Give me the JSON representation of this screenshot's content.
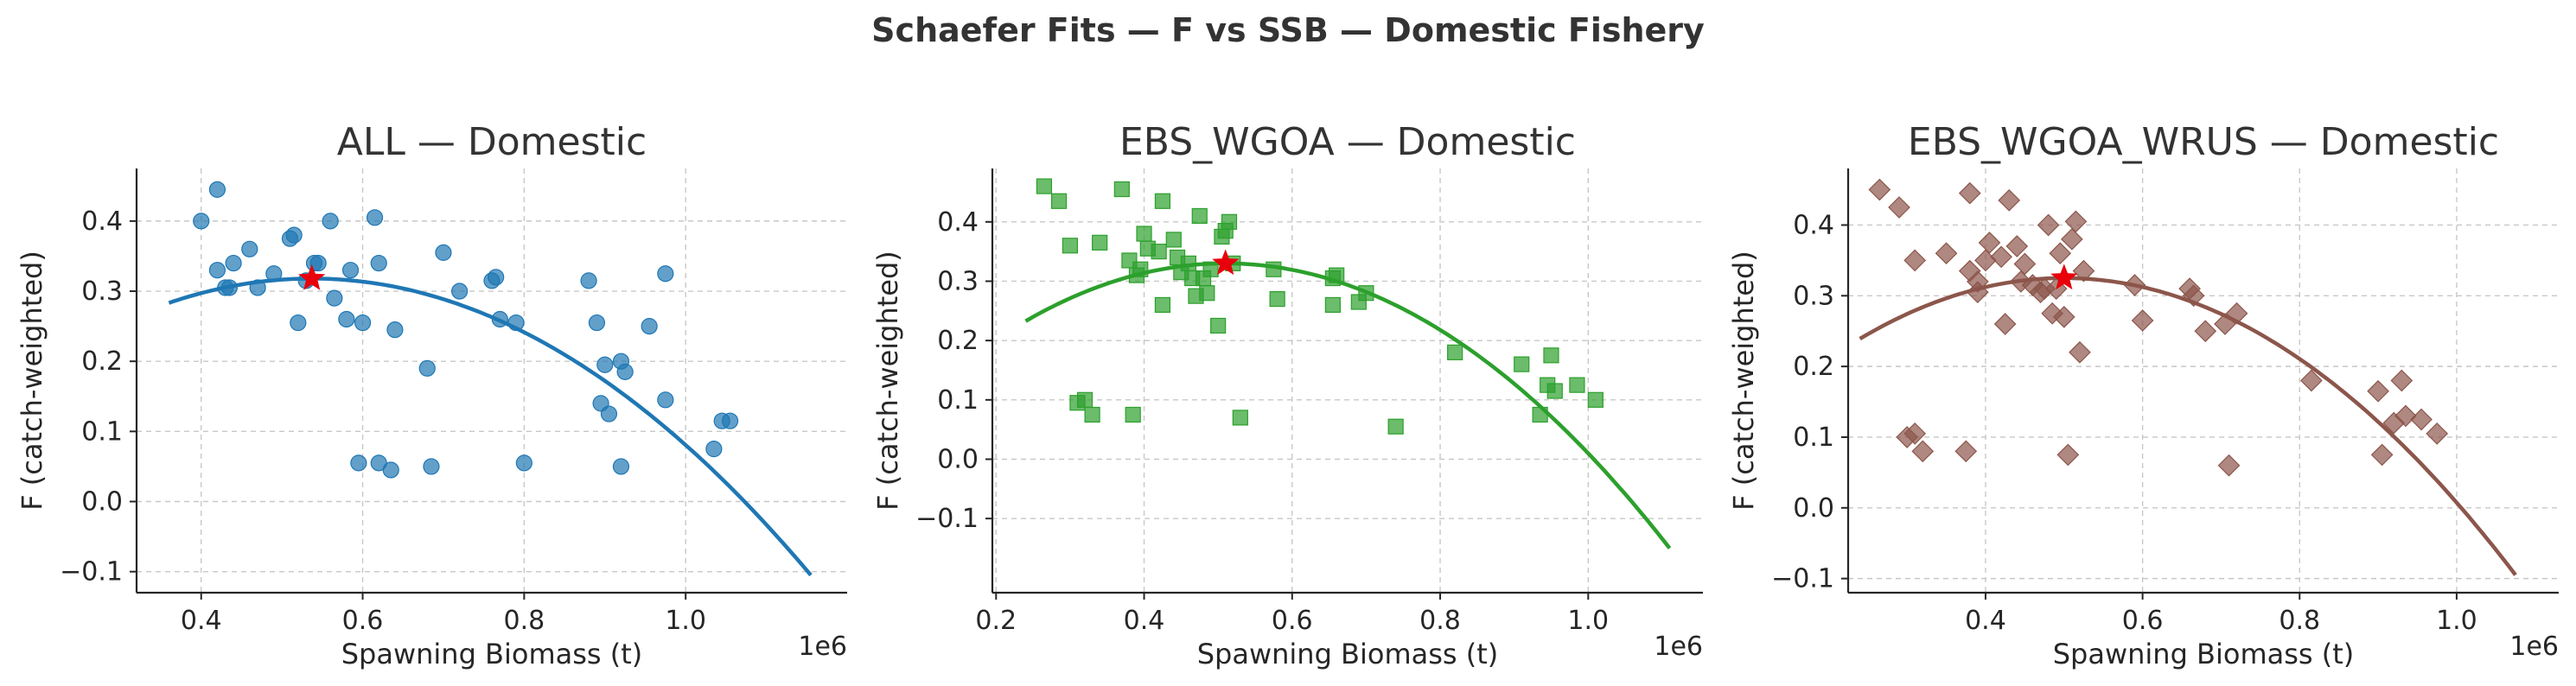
{
  "figure": {
    "suptitle": "Schaefer Fits — F vs SSB — Domestic Fishery"
  },
  "colors": {
    "marker_star": "#e8000b",
    "text": "#333333"
  },
  "chart_data": [
    {
      "type": "scatter",
      "title": "ALL — Domestic",
      "xlabel": "Spawning Biomass (t)",
      "ylabel": "F (catch-weighted)",
      "x_offset_label": "1e6",
      "x_scale_factor": 1000000,
      "xlim": [
        0.32,
        1.2
      ],
      "ylim": [
        -0.13,
        0.475
      ],
      "xticks": [
        0.4,
        0.6,
        0.8,
        1.0
      ],
      "xtick_labels": [
        "0.4",
        "0.6",
        "0.8",
        "1.0"
      ],
      "yticks": [
        -0.1,
        0.0,
        0.1,
        0.2,
        0.3,
        0.4
      ],
      "ytick_labels": [
        "−0.1",
        "0.0",
        "0.1",
        "0.2",
        "0.3",
        "0.4"
      ],
      "grid": true,
      "marker": "circle",
      "color": "#1f77b4",
      "points": [
        [
          0.4,
          0.4
        ],
        [
          0.42,
          0.445
        ],
        [
          0.42,
          0.33
        ],
        [
          0.43,
          0.305
        ],
        [
          0.435,
          0.305
        ],
        [
          0.44,
          0.34
        ],
        [
          0.46,
          0.36
        ],
        [
          0.47,
          0.305
        ],
        [
          0.49,
          0.325
        ],
        [
          0.51,
          0.375
        ],
        [
          0.515,
          0.38
        ],
        [
          0.52,
          0.255
        ],
        [
          0.53,
          0.315
        ],
        [
          0.54,
          0.34
        ],
        [
          0.545,
          0.34
        ],
        [
          0.56,
          0.4
        ],
        [
          0.565,
          0.29
        ],
        [
          0.58,
          0.26
        ],
        [
          0.585,
          0.33
        ],
        [
          0.595,
          0.055
        ],
        [
          0.6,
          0.255
        ],
        [
          0.615,
          0.405
        ],
        [
          0.62,
          0.34
        ],
        [
          0.62,
          0.055
        ],
        [
          0.635,
          0.045
        ],
        [
          0.64,
          0.245
        ],
        [
          0.68,
          0.19
        ],
        [
          0.685,
          0.05
        ],
        [
          0.7,
          0.355
        ],
        [
          0.72,
          0.3
        ],
        [
          0.76,
          0.315
        ],
        [
          0.765,
          0.32
        ],
        [
          0.77,
          0.26
        ],
        [
          0.79,
          0.255
        ],
        [
          0.8,
          0.055
        ],
        [
          0.88,
          0.315
        ],
        [
          0.89,
          0.255
        ],
        [
          0.895,
          0.14
        ],
        [
          0.9,
          0.195
        ],
        [
          0.905,
          0.125
        ],
        [
          0.92,
          0.05
        ],
        [
          0.92,
          0.2
        ],
        [
          0.925,
          0.185
        ],
        [
          0.955,
          0.25
        ],
        [
          0.975,
          0.145
        ],
        [
          0.975,
          0.325
        ],
        [
          1.035,
          0.075
        ],
        [
          1.045,
          0.115
        ],
        [
          1.055,
          0.115
        ]
      ],
      "fit_curve": {
        "x_range": [
          0.36,
          1.155
        ],
        "peak_x": 0.537,
        "peak_y": 0.318,
        "end_y": -0.105
      },
      "msy_point": [
        0.537,
        0.318
      ]
    },
    {
      "type": "scatter",
      "title": "EBS_WGOA — Domestic",
      "xlabel": "Spawning Biomass (t)",
      "ylabel": "F (catch-weighted)",
      "x_offset_label": "1e6",
      "x_scale_factor": 1000000,
      "xlim": [
        0.195,
        1.155
      ],
      "ylim": [
        -0.225,
        0.49
      ],
      "xticks": [
        0.2,
        0.4,
        0.6,
        0.8,
        1.0
      ],
      "xtick_labels": [
        "0.2",
        "0.4",
        "0.6",
        "0.8",
        "1.0"
      ],
      "yticks": [
        -0.1,
        0.0,
        0.1,
        0.2,
        0.3,
        0.4
      ],
      "ytick_labels": [
        "−0.1",
        "0.0",
        "0.1",
        "0.2",
        "0.3",
        "0.4"
      ],
      "grid": true,
      "marker": "square",
      "color": "#2ca02c",
      "points": [
        [
          0.265,
          0.46
        ],
        [
          0.285,
          0.435
        ],
        [
          0.3,
          0.36
        ],
        [
          0.31,
          0.095
        ],
        [
          0.32,
          0.1
        ],
        [
          0.33,
          0.075
        ],
        [
          0.34,
          0.365
        ],
        [
          0.37,
          0.455
        ],
        [
          0.38,
          0.335
        ],
        [
          0.385,
          0.075
        ],
        [
          0.39,
          0.31
        ],
        [
          0.395,
          0.32
        ],
        [
          0.4,
          0.38
        ],
        [
          0.405,
          0.355
        ],
        [
          0.42,
          0.35
        ],
        [
          0.425,
          0.26
        ],
        [
          0.425,
          0.435
        ],
        [
          0.44,
          0.37
        ],
        [
          0.445,
          0.34
        ],
        [
          0.45,
          0.315
        ],
        [
          0.46,
          0.33
        ],
        [
          0.465,
          0.305
        ],
        [
          0.47,
          0.275
        ],
        [
          0.475,
          0.41
        ],
        [
          0.48,
          0.305
        ],
        [
          0.485,
          0.28
        ],
        [
          0.49,
          0.32
        ],
        [
          0.5,
          0.225
        ],
        [
          0.505,
          0.375
        ],
        [
          0.51,
          0.385
        ],
        [
          0.515,
          0.4
        ],
        [
          0.52,
          0.33
        ],
        [
          0.53,
          0.07
        ],
        [
          0.575,
          0.32
        ],
        [
          0.58,
          0.27
        ],
        [
          0.655,
          0.26
        ],
        [
          0.655,
          0.305
        ],
        [
          0.66,
          0.31
        ],
        [
          0.69,
          0.265
        ],
        [
          0.7,
          0.28
        ],
        [
          0.74,
          0.055
        ],
        [
          0.82,
          0.18
        ],
        [
          0.91,
          0.16
        ],
        [
          0.935,
          0.075
        ],
        [
          0.945,
          0.125
        ],
        [
          0.95,
          0.175
        ],
        [
          0.955,
          0.115
        ],
        [
          0.985,
          0.125
        ],
        [
          1.01,
          0.1
        ]
      ],
      "fit_curve": {
        "x_range": [
          0.24,
          1.11
        ],
        "peak_x": 0.51,
        "peak_y": 0.33,
        "end_y": -0.15
      },
      "msy_point": [
        0.51,
        0.33
      ]
    },
    {
      "type": "scatter",
      "title": "EBS_WGOA_WRUS — Domestic",
      "xlabel": "Spawning Biomass (t)",
      "ylabel": "F (catch-weighted)",
      "x_offset_label": "1e6",
      "x_scale_factor": 1000000,
      "xlim": [
        0.225,
        1.13
      ],
      "ylim": [
        -0.12,
        0.48
      ],
      "xticks": [
        0.4,
        0.6,
        0.8,
        1.0
      ],
      "xtick_labels": [
        "0.4",
        "0.6",
        "0.8",
        "1.0"
      ],
      "yticks": [
        -0.1,
        0.0,
        0.1,
        0.2,
        0.3,
        0.4
      ],
      "ytick_labels": [
        "−0.1",
        "0.0",
        "0.1",
        "0.2",
        "0.3",
        "0.4"
      ],
      "grid": true,
      "marker": "diamond",
      "color": "#8c564b",
      "points": [
        [
          0.265,
          0.45
        ],
        [
          0.29,
          0.425
        ],
        [
          0.3,
          0.1
        ],
        [
          0.31,
          0.35
        ],
        [
          0.31,
          0.105
        ],
        [
          0.32,
          0.08
        ],
        [
          0.35,
          0.36
        ],
        [
          0.375,
          0.08
        ],
        [
          0.38,
          0.335
        ],
        [
          0.38,
          0.445
        ],
        [
          0.39,
          0.305
        ],
        [
          0.39,
          0.32
        ],
        [
          0.4,
          0.35
        ],
        [
          0.405,
          0.375
        ],
        [
          0.42,
          0.355
        ],
        [
          0.425,
          0.26
        ],
        [
          0.43,
          0.435
        ],
        [
          0.44,
          0.37
        ],
        [
          0.445,
          0.32
        ],
        [
          0.45,
          0.345
        ],
        [
          0.46,
          0.315
        ],
        [
          0.47,
          0.305
        ],
        [
          0.475,
          0.31
        ],
        [
          0.48,
          0.4
        ],
        [
          0.485,
          0.275
        ],
        [
          0.49,
          0.31
        ],
        [
          0.495,
          0.36
        ],
        [
          0.5,
          0.27
        ],
        [
          0.505,
          0.075
        ],
        [
          0.51,
          0.38
        ],
        [
          0.515,
          0.405
        ],
        [
          0.52,
          0.22
        ],
        [
          0.525,
          0.335
        ],
        [
          0.59,
          0.315
        ],
        [
          0.6,
          0.265
        ],
        [
          0.66,
          0.31
        ],
        [
          0.665,
          0.3
        ],
        [
          0.68,
          0.25
        ],
        [
          0.705,
          0.26
        ],
        [
          0.71,
          0.06
        ],
        [
          0.72,
          0.275
        ],
        [
          0.815,
          0.18
        ],
        [
          0.9,
          0.165
        ],
        [
          0.905,
          0.075
        ],
        [
          0.92,
          0.12
        ],
        [
          0.93,
          0.18
        ],
        [
          0.935,
          0.13
        ],
        [
          0.955,
          0.125
        ],
        [
          0.975,
          0.105
        ]
      ],
      "fit_curve": {
        "x_range": [
          0.24,
          1.075
        ],
        "peak_x": 0.5,
        "peak_y": 0.325,
        "end_y": -0.095
      },
      "msy_point": [
        0.5,
        0.325
      ]
    }
  ]
}
